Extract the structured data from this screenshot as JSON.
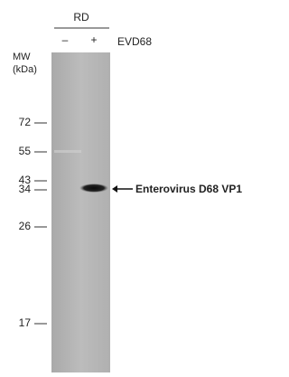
{
  "header": {
    "cell_line": "RD",
    "lanes": [
      "–",
      "+"
    ],
    "condition": "EVD68"
  },
  "axis": {
    "title": "MW",
    "unit": "(kDa)",
    "markers": [
      "72",
      "55",
      "43",
      "34",
      "26",
      "17"
    ]
  },
  "band": {
    "label": "Enterovirus D68 VP1"
  }
}
